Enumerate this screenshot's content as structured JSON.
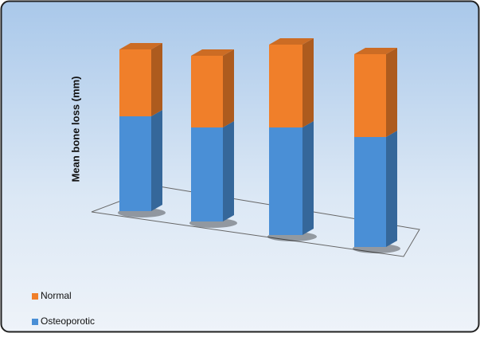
{
  "chart_data": {
    "type": "bar3d-stacked",
    "y_axis_label": "Mean bone loss (mm)",
    "categories": [
      null,
      null,
      null,
      null
    ],
    "series": [
      {
        "name": "Osteoporotic",
        "color": "#4a8fd6",
        "values": [
          119,
          118,
          135,
          138
        ]
      },
      {
        "name": "Normal",
        "color": "#f07f2a",
        "values": [
          84,
          90,
          104,
          104
        ]
      }
    ],
    "ylim": [
      0,
      260
    ],
    "legend": "bottom-left"
  }
}
